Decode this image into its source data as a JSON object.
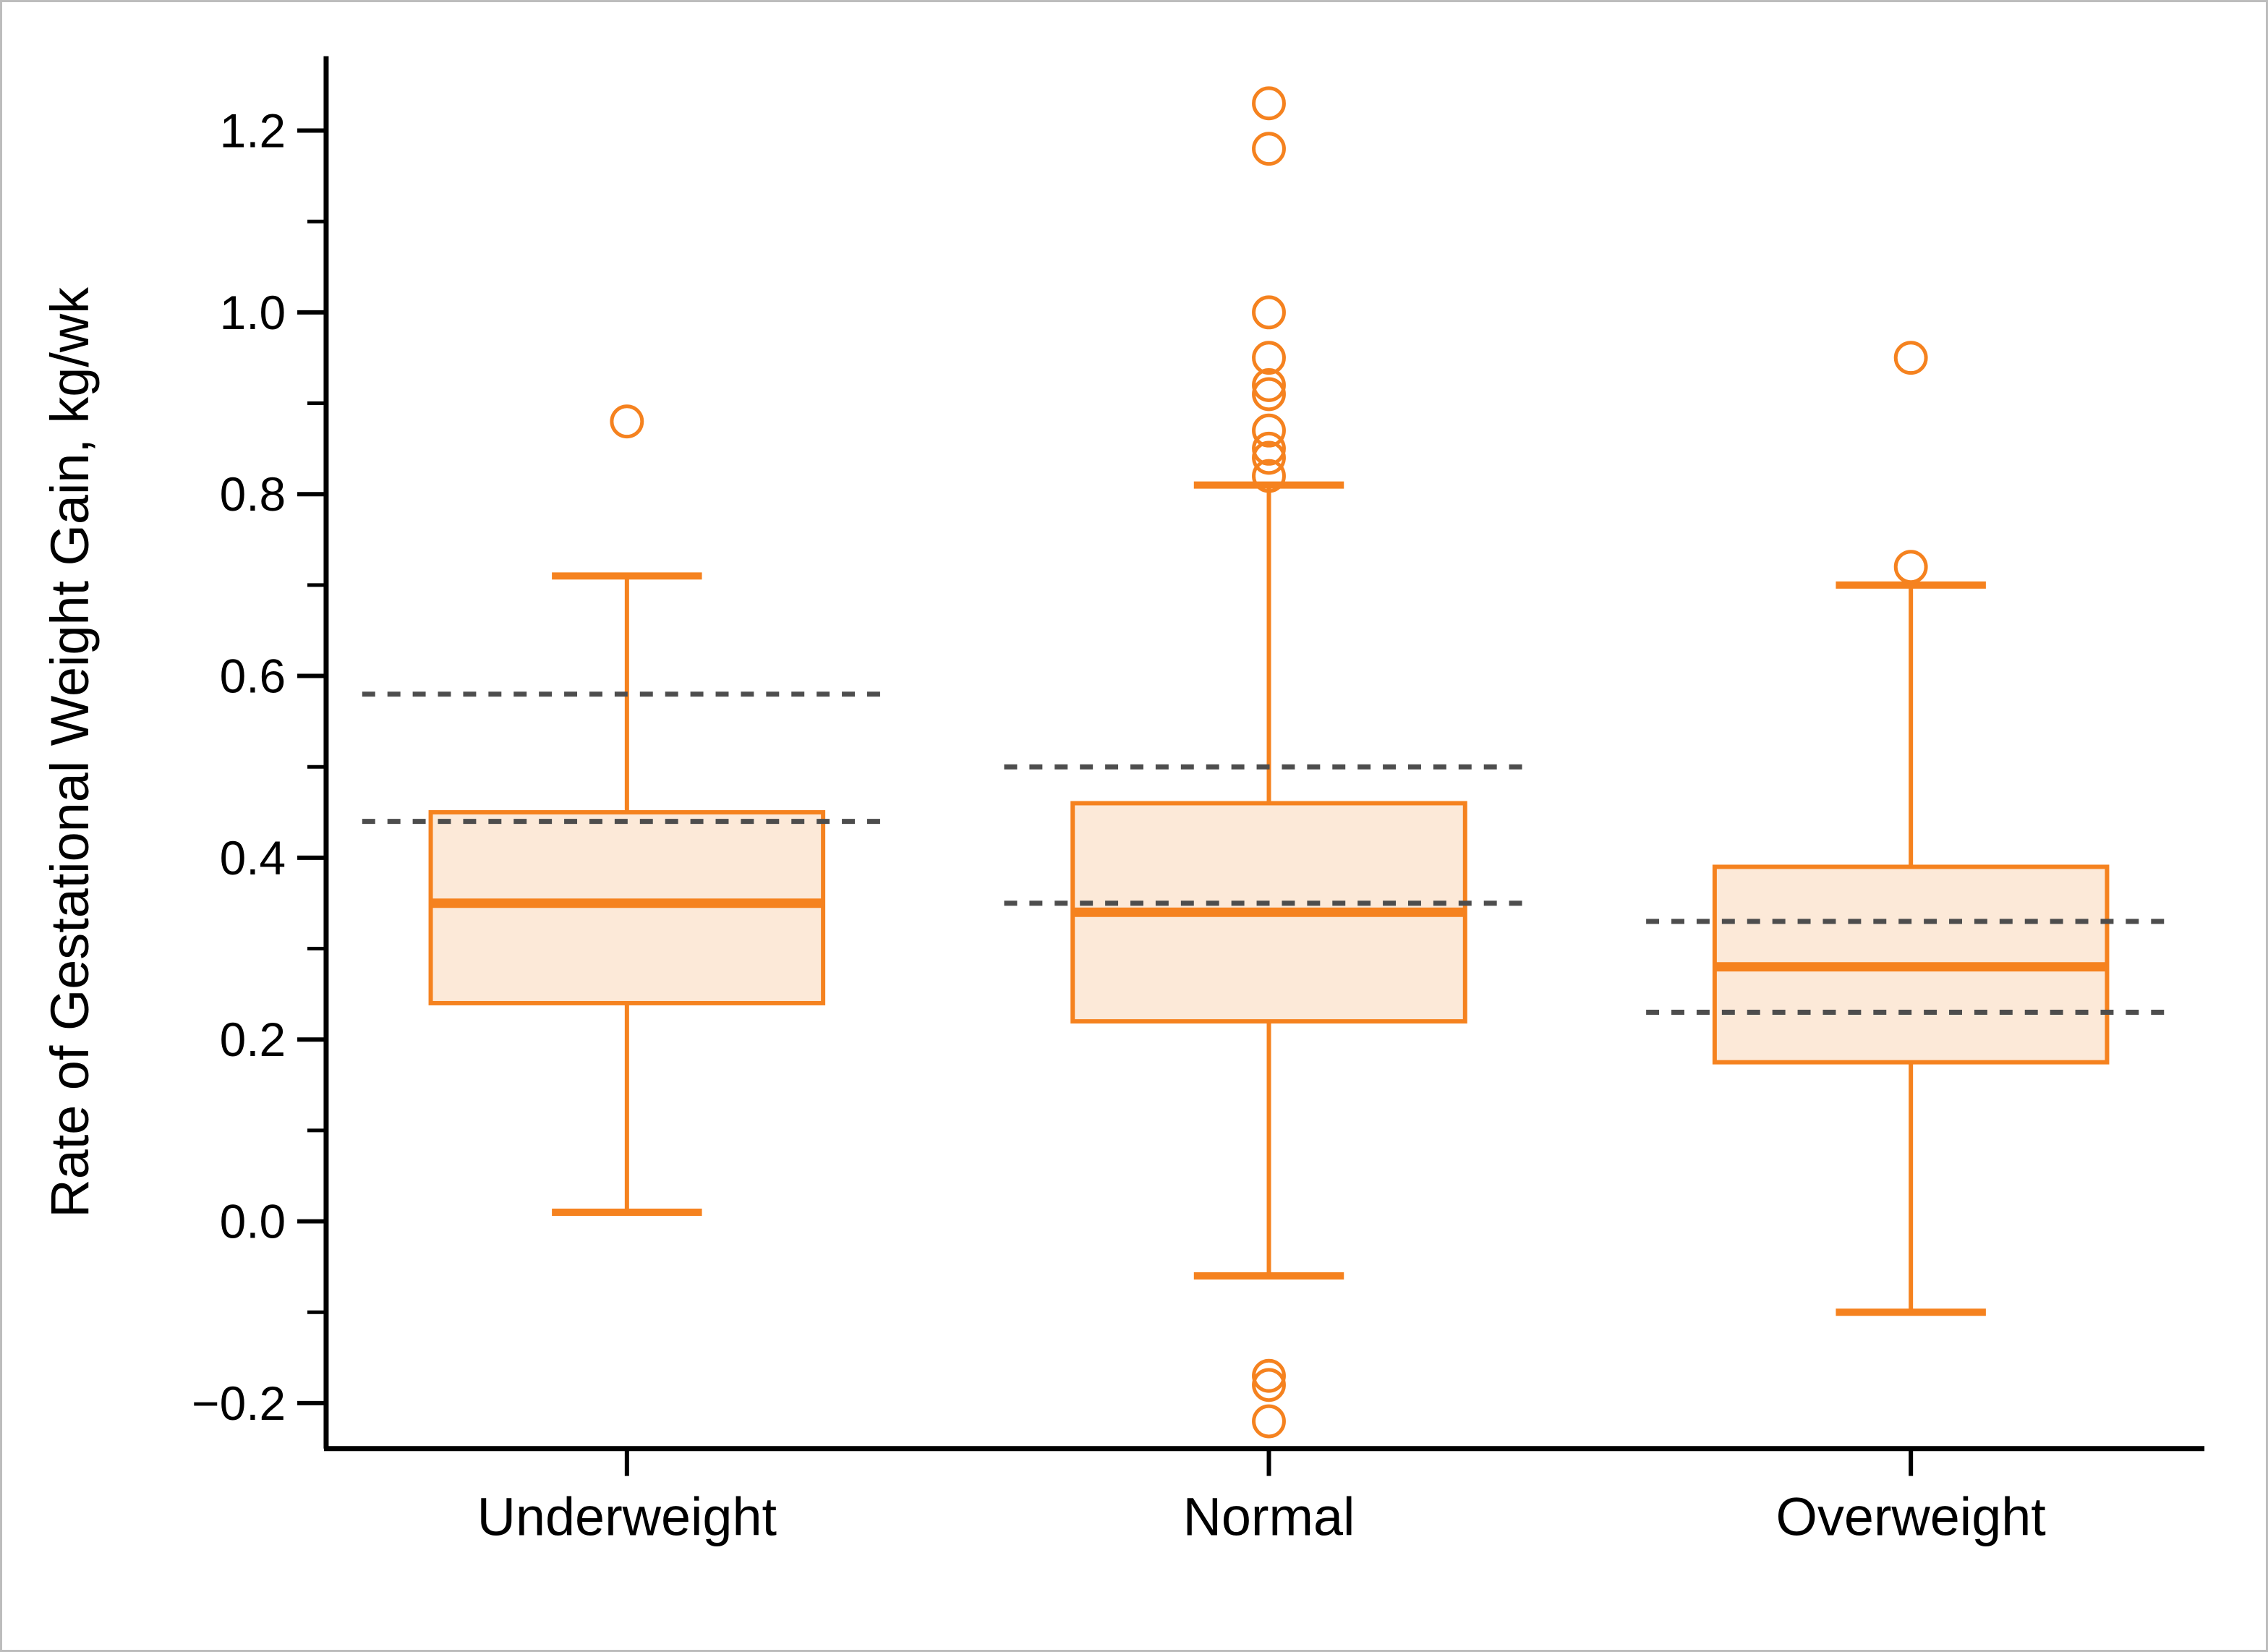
{
  "chart_data": {
    "type": "boxplot",
    "title": "",
    "xlabel": "",
    "ylabel": "Rate of Gestational Weight Gain, kg/wk",
    "ylim": [
      -0.25,
      1.28
    ],
    "grid": false,
    "legend": "none",
    "y_axis": {
      "major_tick_values": [
        1.2,
        1.0,
        0.8,
        0.6,
        0.4,
        0.2,
        0.0,
        -0.2
      ],
      "major_tick_labels": [
        "1.2",
        "1.0",
        "0.8",
        "0.6",
        "0.4",
        "0.2",
        "0.0",
        "−0.2"
      ],
      "minor_tick_values": [
        1.1,
        0.9,
        0.7,
        0.5,
        0.3,
        0.1,
        -0.1
      ]
    },
    "categories": [
      "Underweight",
      "Normal",
      "Overweight"
    ],
    "series": [
      {
        "name": "Underweight",
        "whisker_low": 0.01,
        "q1": 0.24,
        "median": 0.35,
        "q3": 0.45,
        "whisker_high": 0.71,
        "outliers": [
          0.88
        ],
        "recommended_range_dashed": [
          0.44,
          0.58
        ]
      },
      {
        "name": "Normal",
        "whisker_low": -0.06,
        "q1": 0.22,
        "median": 0.34,
        "q3": 0.46,
        "whisker_high": 0.81,
        "outliers": [
          -0.22,
          -0.18,
          -0.17,
          0.82,
          0.84,
          0.85,
          0.87,
          0.91,
          0.92,
          0.95,
          1.0,
          1.18,
          1.23
        ],
        "recommended_range_dashed": [
          0.35,
          0.5
        ]
      },
      {
        "name": "Overweight",
        "whisker_low": -0.1,
        "q1": 0.175,
        "median": 0.28,
        "q3": 0.39,
        "whisker_high": 0.7,
        "outliers": [
          0.72,
          0.95
        ],
        "recommended_range_dashed": [
          0.23,
          0.33
        ]
      }
    ],
    "colors": {
      "box_stroke": "#F5821F",
      "box_fill": "#FCE9D8",
      "median": "#F5821F",
      "outlier_stroke": "#F5821F",
      "guideline_dashed": "#4D4D4D",
      "axis": "#000000",
      "frame_border": "#BDBDBD",
      "background": "#FFFFFF"
    }
  }
}
